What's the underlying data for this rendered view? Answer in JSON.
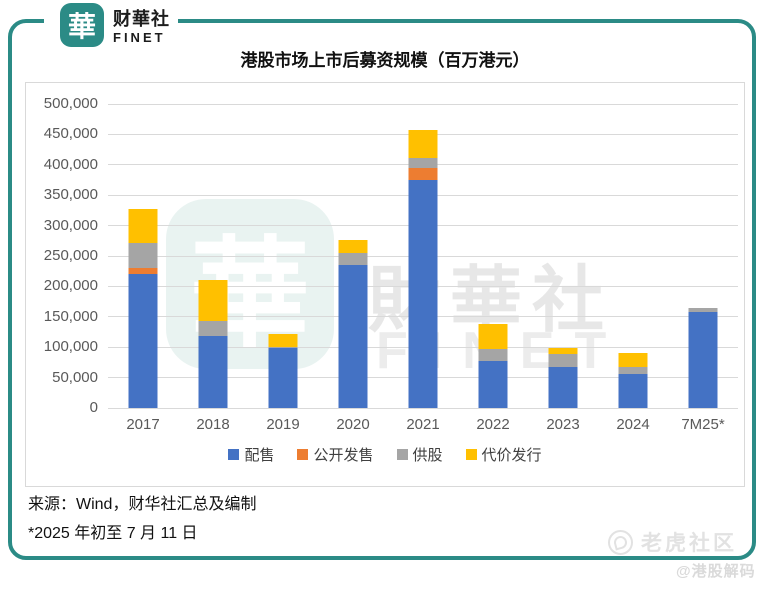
{
  "logo": {
    "mark": "華",
    "name_cn": "财華社",
    "name_en": "FINET"
  },
  "chart_data": {
    "type": "bar",
    "stacked": true,
    "title": "港股市场上市后募资规模（百万港元）",
    "categories": [
      "2017",
      "2018",
      "2019",
      "2020",
      "2021",
      "2022",
      "2023",
      "2024",
      "7M25*"
    ],
    "series": [
      {
        "name": "配售",
        "color": "#4472C4",
        "values": [
          220000,
          118000,
          98000,
          235000,
          375000,
          78000,
          68000,
          56000,
          158000
        ]
      },
      {
        "name": "公开发售",
        "color": "#ED7D31",
        "values": [
          10000,
          0,
          0,
          0,
          20000,
          0,
          0,
          0,
          0
        ]
      },
      {
        "name": "供股",
        "color": "#A5A5A5",
        "values": [
          41000,
          25000,
          3000,
          20000,
          16000,
          19000,
          21000,
          11000,
          7000
        ]
      },
      {
        "name": "代价发行",
        "color": "#FFC000",
        "values": [
          56000,
          67000,
          20000,
          21000,
          46000,
          41000,
          9000,
          23000,
          0
        ]
      }
    ],
    "ylim": [
      0,
      500000
    ],
    "ytick_step": 50000,
    "ytick_labels": [
      "0",
      "50,000",
      "100,000",
      "150,000",
      "200,000",
      "250,000",
      "300,000",
      "350,000",
      "400,000",
      "450,000",
      "500,000"
    ],
    "grid": true,
    "legend_position": "bottom"
  },
  "watermark": {
    "center_mark": "華",
    "center_text_cn": "財華社",
    "center_text_en": "FINET",
    "tiger_label": "老虎社区",
    "handle": "@港股解码"
  },
  "footer": {
    "source": "来源：Wind，财华社汇总及编制",
    "note": "*2025 年初至 7 月 11 日"
  },
  "colors": {
    "frame": "#2B8B86",
    "grid": "#D9D9D9",
    "axis_text": "#595959"
  }
}
